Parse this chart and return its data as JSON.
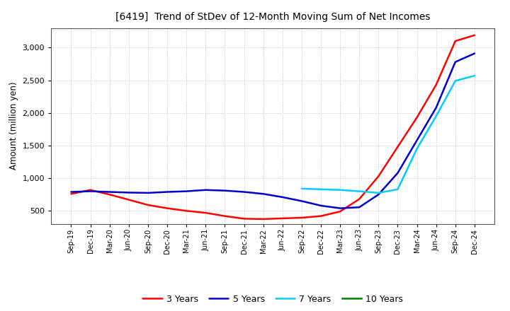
{
  "title": "[6419]  Trend of StDev of 12-Month Moving Sum of Net Incomes",
  "ylabel": "Amount (million yen)",
  "background_color": "#ffffff",
  "plot_bg_color": "#ffffff",
  "grid_color": "#b0b0b0",
  "ylim": [
    300,
    3300
  ],
  "yticks": [
    500,
    1000,
    1500,
    2000,
    2500,
    3000
  ],
  "x_labels": [
    "Sep-19",
    "Dec-19",
    "Mar-20",
    "Jun-20",
    "Sep-20",
    "Dec-20",
    "Mar-21",
    "Jun-21",
    "Sep-21",
    "Dec-21",
    "Mar-22",
    "Jun-22",
    "Sep-22",
    "Dec-22",
    "Mar-23",
    "Jun-23",
    "Sep-23",
    "Dec-23",
    "Mar-24",
    "Jun-24",
    "Sep-24",
    "Dec-24"
  ],
  "series": {
    "3 Years": {
      "color": "#ff0000",
      "data": [
        760,
        820,
        750,
        670,
        590,
        540,
        500,
        470,
        420,
        380,
        375,
        385,
        395,
        420,
        490,
        680,
        1030,
        1480,
        1930,
        2430,
        3100,
        3190
      ]
    },
    "5 Years": {
      "color": "#0000cc",
      "data": [
        790,
        800,
        790,
        780,
        775,
        790,
        800,
        820,
        810,
        790,
        760,
        710,
        650,
        580,
        540,
        555,
        750,
        1080,
        1580,
        2080,
        2780,
        2910
      ]
    },
    "7 Years": {
      "color": "#00ccff",
      "data": [
        null,
        null,
        null,
        null,
        null,
        null,
        null,
        null,
        null,
        null,
        null,
        null,
        840,
        830,
        820,
        800,
        775,
        830,
        1450,
        1950,
        2490,
        2570
      ]
    },
    "10 Years": {
      "color": "#008000",
      "data": [
        null,
        null,
        null,
        null,
        null,
        null,
        null,
        null,
        null,
        null,
        null,
        null,
        null,
        null,
        null,
        null,
        null,
        null,
        null,
        null,
        null,
        null
      ]
    }
  },
  "legend_order": [
    "3 Years",
    "5 Years",
    "7 Years",
    "10 Years"
  ]
}
